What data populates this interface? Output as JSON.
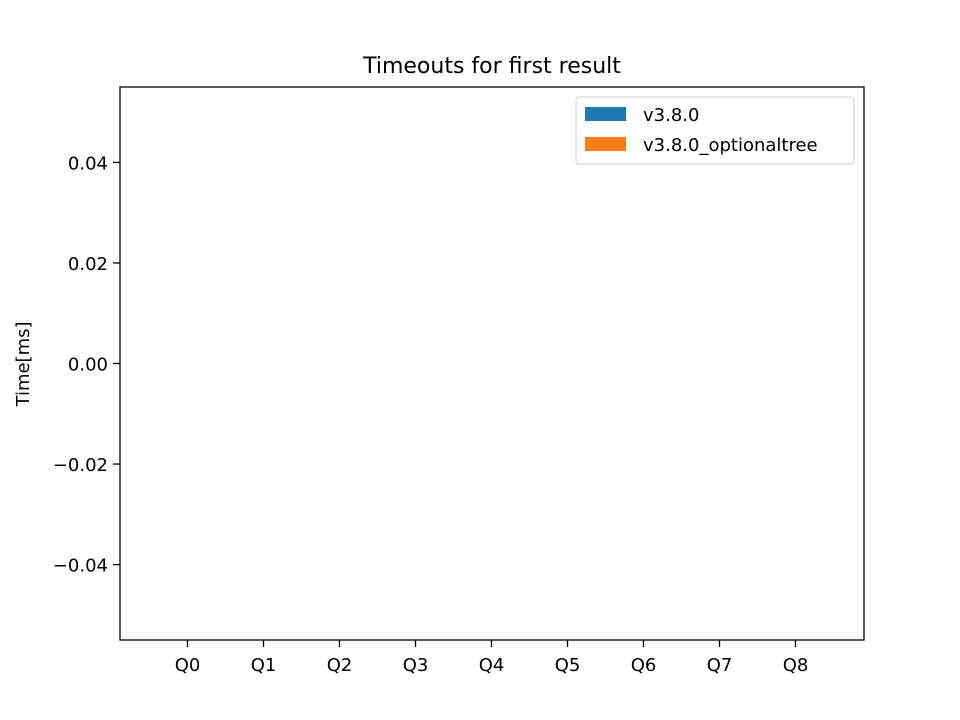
{
  "chart_data": {
    "type": "bar",
    "title": "Timeouts for first result",
    "xlabel": "",
    "ylabel": "Time[ms]",
    "categories": [
      "Q0",
      "Q1",
      "Q2",
      "Q3",
      "Q4",
      "Q5",
      "Q6",
      "Q7",
      "Q8"
    ],
    "series": [
      {
        "name": "v3.8.0",
        "color": "#1f77b4",
        "values": [
          0,
          0,
          0,
          0,
          0,
          0,
          0,
          0,
          0
        ]
      },
      {
        "name": "v3.8.0_optionaltree",
        "color": "#ff7f0e",
        "values": [
          0,
          0,
          0,
          0,
          0,
          0,
          0,
          0,
          0
        ]
      }
    ],
    "ylim": [
      -0.055,
      0.055
    ],
    "yticks": [
      -0.04,
      -0.02,
      0.0,
      0.02,
      0.04
    ],
    "ytick_labels": [
      "−0.04",
      "−0.02",
      "0.00",
      "0.02",
      "0.04"
    ],
    "grid": false,
    "legend_position": "upper right"
  }
}
